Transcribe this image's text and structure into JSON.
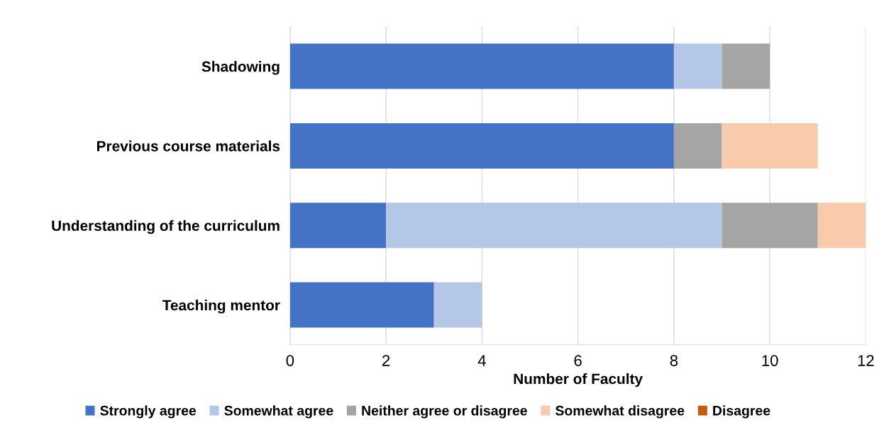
{
  "chart_data": {
    "type": "bar",
    "orientation": "horizontal",
    "stacked": true,
    "xlabel": "Number of Faculty",
    "categories": [
      "Shadowing",
      "Previous course materials",
      "Understanding of the curriculum",
      "Teaching mentor"
    ],
    "series": [
      {
        "name": "Strongly agree",
        "color": "#4472c4",
        "values": [
          8,
          8,
          2,
          3
        ]
      },
      {
        "name": "Somewhat agree",
        "color": "#b4c7e7",
        "values": [
          1,
          0,
          7,
          1
        ]
      },
      {
        "name": "Neither agree or disagree",
        "color": "#a5a5a5",
        "values": [
          1,
          1,
          2,
          0
        ]
      },
      {
        "name": "Somewhat disagree",
        "color": "#f8cbad",
        "values": [
          0,
          2,
          1,
          0
        ]
      },
      {
        "name": "Disagree",
        "color": "#c55a11",
        "values": [
          0,
          0,
          0,
          0
        ]
      }
    ],
    "xlim": [
      0,
      12
    ],
    "xticks": [
      0,
      2,
      4,
      6,
      8,
      10,
      12
    ],
    "grid": "x",
    "legend": "bottom"
  }
}
